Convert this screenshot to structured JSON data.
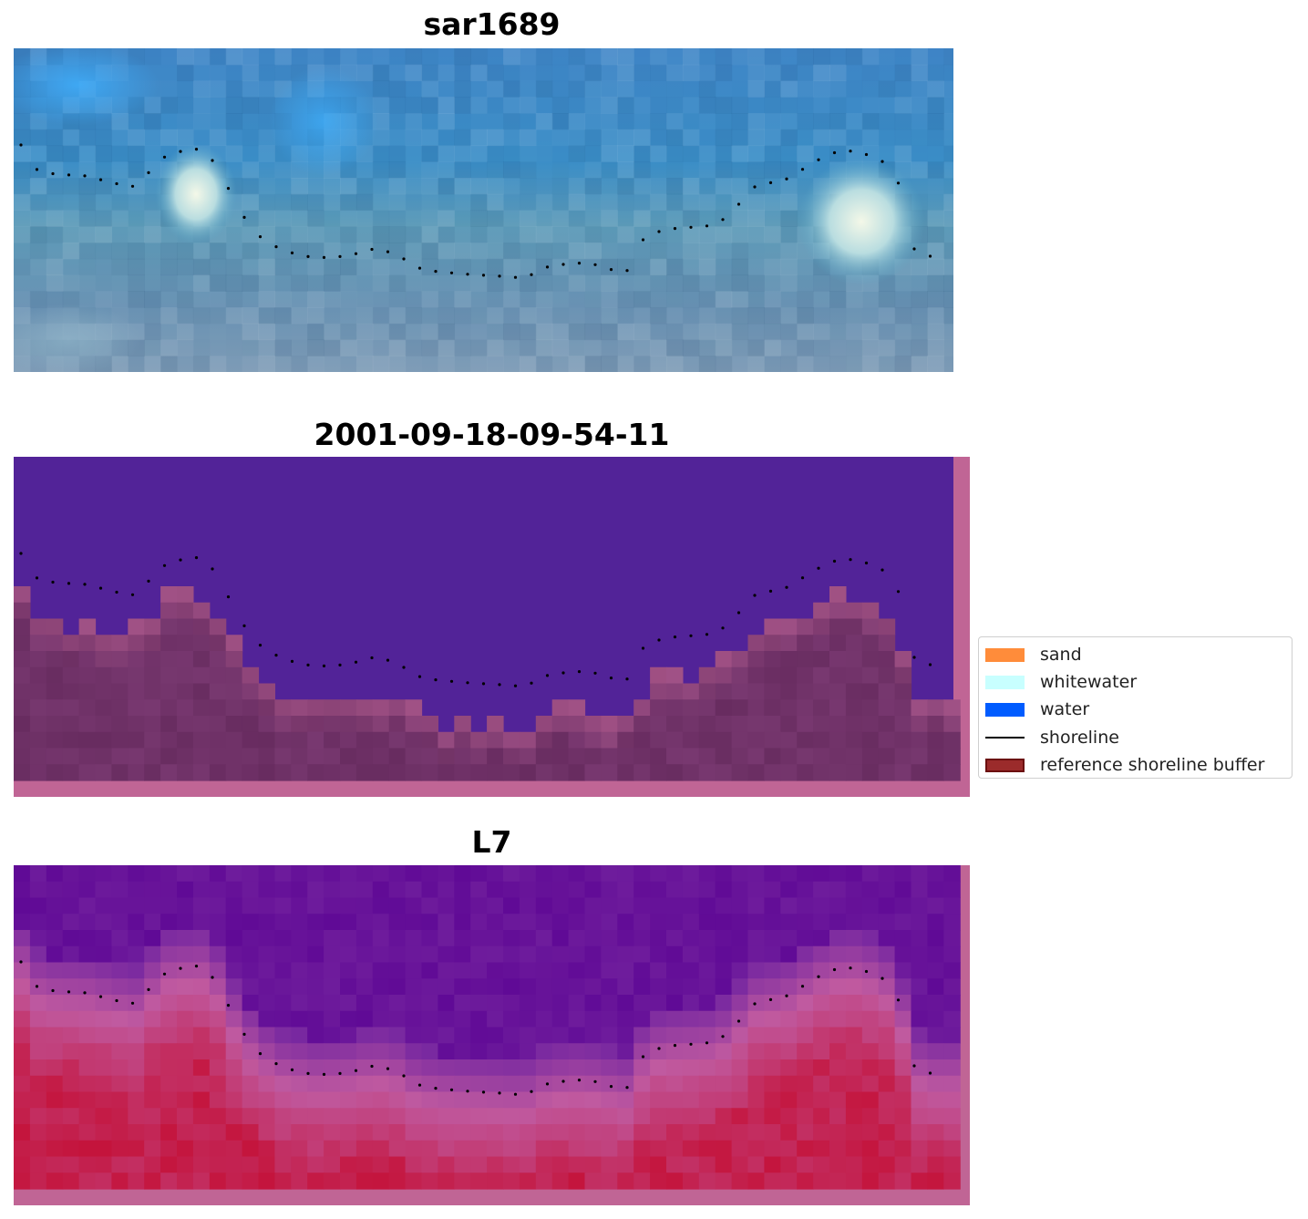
{
  "panels": [
    {
      "title": "sar1689",
      "kind": "rgb"
    },
    {
      "title": "2001-09-18-09-54-11",
      "kind": "classification"
    },
    {
      "title": "L7",
      "kind": "index"
    }
  ],
  "legend": {
    "items": [
      {
        "label": "sand",
        "type": "patch",
        "color": "#ff8c3a"
      },
      {
        "label": "whitewater",
        "type": "patch",
        "color": "#c8ffff"
      },
      {
        "label": "water",
        "type": "patch",
        "color": "#005cff"
      },
      {
        "label": "shoreline",
        "type": "line",
        "color": "#000000"
      },
      {
        "label": "reference shoreline buffer",
        "type": "patch",
        "color": "#9b2b2b",
        "edge": "#6b0f0f"
      }
    ]
  }
}
